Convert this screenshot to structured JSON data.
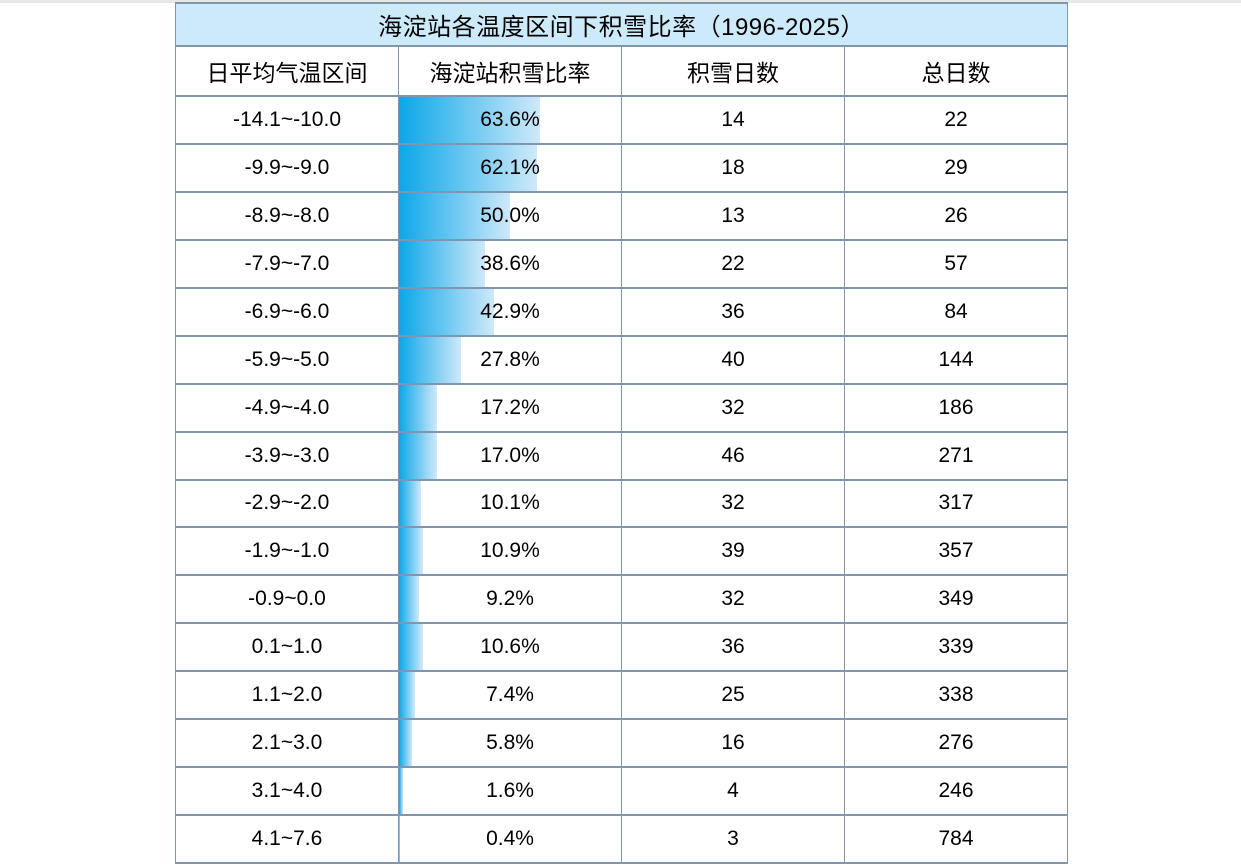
{
  "title": "海淀站各温度区间下积雪比率（1996-2025）",
  "columns": [
    "日平均气温区间",
    "海淀站积雪比率",
    "积雪日数",
    "总日数"
  ],
  "rows": [
    {
      "range": "-14.1~-10.0",
      "ratio_label": "63.6%",
      "ratio_pct": 63.6,
      "snow_days": "14",
      "total_days": "22"
    },
    {
      "range": "-9.9~-9.0",
      "ratio_label": "62.1%",
      "ratio_pct": 62.1,
      "snow_days": "18",
      "total_days": "29"
    },
    {
      "range": "-8.9~-8.0",
      "ratio_label": "50.0%",
      "ratio_pct": 50.0,
      "snow_days": "13",
      "total_days": "26"
    },
    {
      "range": "-7.9~-7.0",
      "ratio_label": "38.6%",
      "ratio_pct": 38.6,
      "snow_days": "22",
      "total_days": "57"
    },
    {
      "range": "-6.9~-6.0",
      "ratio_label": "42.9%",
      "ratio_pct": 42.9,
      "snow_days": "36",
      "total_days": "84"
    },
    {
      "range": "-5.9~-5.0",
      "ratio_label": "27.8%",
      "ratio_pct": 27.8,
      "snow_days": "40",
      "total_days": "144"
    },
    {
      "range": "-4.9~-4.0",
      "ratio_label": "17.2%",
      "ratio_pct": 17.2,
      "snow_days": "32",
      "total_days": "186"
    },
    {
      "range": "-3.9~-3.0",
      "ratio_label": "17.0%",
      "ratio_pct": 17.0,
      "snow_days": "46",
      "total_days": "271"
    },
    {
      "range": "-2.9~-2.0",
      "ratio_label": "10.1%",
      "ratio_pct": 10.1,
      "snow_days": "32",
      "total_days": "317"
    },
    {
      "range": "-1.9~-1.0",
      "ratio_label": "10.9%",
      "ratio_pct": 10.9,
      "snow_days": "39",
      "total_days": "357"
    },
    {
      "range": "-0.9~0.0",
      "ratio_label": "9.2%",
      "ratio_pct": 9.2,
      "snow_days": "32",
      "total_days": "349"
    },
    {
      "range": "0.1~1.0",
      "ratio_label": "10.6%",
      "ratio_pct": 10.6,
      "snow_days": "36",
      "total_days": "339"
    },
    {
      "range": "1.1~2.0",
      "ratio_label": "7.4%",
      "ratio_pct": 7.4,
      "snow_days": "25",
      "total_days": "338"
    },
    {
      "range": "2.1~3.0",
      "ratio_label": "5.8%",
      "ratio_pct": 5.8,
      "snow_days": "16",
      "total_days": "276"
    },
    {
      "range": "3.1~4.0",
      "ratio_label": "1.6%",
      "ratio_pct": 1.6,
      "snow_days": "4",
      "total_days": "246"
    },
    {
      "range": "4.1~7.6",
      "ratio_label": "0.4%",
      "ratio_pct": 0.4,
      "snow_days": "3",
      "total_days": "784"
    }
  ],
  "colors": {
    "border": "#8295af",
    "title_bg": "#cdeafb",
    "bar_gradient_start": "#0ba7e9",
    "bar_gradient_end": "#cfe9f9",
    "top_strip": "#e7e7e7"
  },
  "chart_data": {
    "type": "table",
    "title": "海淀站各温度区间下积雪比率（1996-2025）",
    "columns": [
      "日平均气温区间",
      "海淀站积雪比率",
      "积雪日数",
      "总日数"
    ],
    "categories": [
      "-14.1~-10.0",
      "-9.9~-9.0",
      "-8.9~-8.0",
      "-7.9~-7.0",
      "-6.9~-6.0",
      "-5.9~-5.0",
      "-4.9~-4.0",
      "-3.9~-3.0",
      "-2.9~-2.0",
      "-1.9~-1.0",
      "-0.9~0.0",
      "0.1~1.0",
      "1.1~2.0",
      "2.1~3.0",
      "3.1~4.0",
      "4.1~7.6"
    ],
    "series": [
      {
        "name": "海淀站积雪比率(%)",
        "values": [
          63.6,
          62.1,
          50.0,
          38.6,
          42.9,
          27.8,
          17.2,
          17.0,
          10.1,
          10.9,
          9.2,
          10.6,
          7.4,
          5.8,
          1.6,
          0.4
        ]
      },
      {
        "name": "积雪日数",
        "values": [
          14,
          18,
          13,
          22,
          36,
          40,
          32,
          46,
          32,
          39,
          32,
          36,
          25,
          16,
          4,
          3
        ]
      },
      {
        "name": "总日数",
        "values": [
          22,
          29,
          26,
          57,
          84,
          144,
          186,
          271,
          317,
          357,
          349,
          339,
          338,
          276,
          246,
          784
        ]
      }
    ],
    "bar_style": "in-cell gradient data bars in ratio column, 100% equals full cell width",
    "value_range_pct": [
      0,
      100
    ],
    "grid": true,
    "legend": false
  }
}
